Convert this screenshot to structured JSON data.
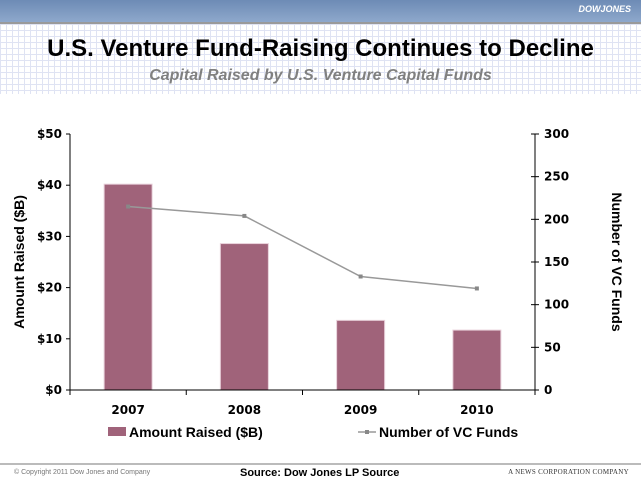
{
  "header": {
    "logo": "DOWJONES",
    "title": "U.S. Venture Fund-Raising Continues to Decline",
    "subtitle": "Capital Raised by U.S. Venture Capital Funds"
  },
  "footer": {
    "copyright": "© Copyright 2011 Dow Jones and Company",
    "source": "Source: Dow Jones LP Source",
    "company": "A NEWS CORPORATION COMPANY"
  },
  "chart_data": {
    "type": "bar",
    "categories": [
      "2007",
      "2008",
      "2009",
      "2010"
    ],
    "series": [
      {
        "name": "Amount Raised ($B)",
        "type": "bar",
        "axis": "left",
        "color": "#a0637a",
        "values": [
          40.2,
          28.6,
          13.6,
          11.7
        ]
      },
      {
        "name": "Number of VC Funds",
        "type": "line",
        "axis": "right",
        "color": "#999999",
        "values": [
          215,
          204,
          133,
          119
        ]
      }
    ],
    "ylabel": "Amount Raised ($B)",
    "y2label": "Number of VC Funds",
    "ylim": [
      0,
      50
    ],
    "y2lim": [
      0,
      300
    ],
    "yticks": [
      "$0",
      "$10",
      "$20",
      "$30",
      "$40",
      "$50"
    ],
    "y2ticks": [
      "0",
      "50",
      "100",
      "150",
      "200",
      "250",
      "300"
    ],
    "grid": false,
    "legend": "bottom"
  }
}
